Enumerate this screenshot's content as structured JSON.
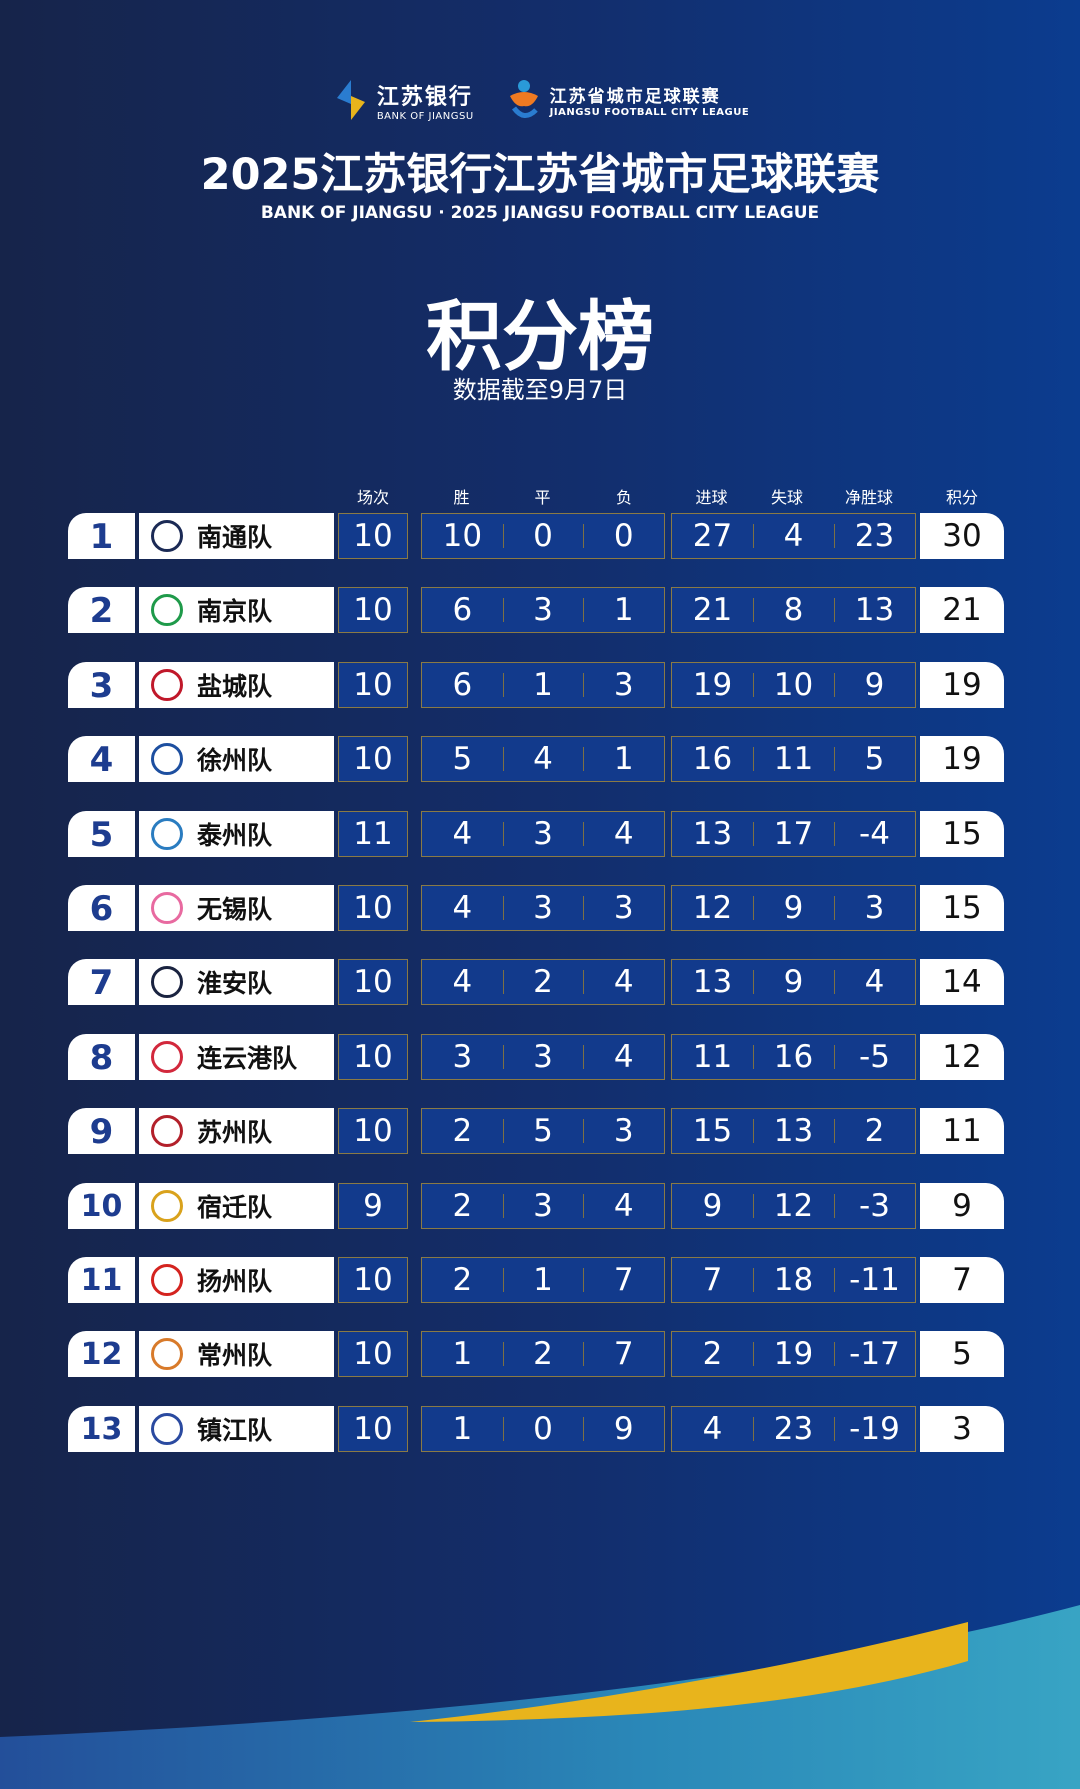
{
  "logos": {
    "bank_cn": "江苏银行",
    "bank_en": "BANK OF JIANGSU",
    "league_cn": "江苏省城市足球联赛",
    "league_en": "JIANGSU FOOTBALL CITY LEAGUE"
  },
  "title": "2025江苏银行江苏省城市足球联赛",
  "subtitle": "BANK OF JIANGSU · 2025 JIANGSU FOOTBALL CITY LEAGUE",
  "board_title": "积分榜",
  "date_note": "数据截至9月7日",
  "headers": {
    "played": "场次",
    "win": "胜",
    "draw": "平",
    "loss": "负",
    "gf": "进球",
    "ga": "失球",
    "gd": "净胜球",
    "pts": "积分"
  },
  "colors": {
    "accent_yellow": "#e8b41c",
    "rank_blue": "#1d3c8f",
    "cell_bg": "#123a8c"
  },
  "rows": [
    {
      "rank": "1",
      "team": "南通队",
      "badge": "#1b2a55",
      "played": "10",
      "w": "10",
      "d": "0",
      "l": "0",
      "gf": "27",
      "ga": "4",
      "gd": "23",
      "pts": "30"
    },
    {
      "rank": "2",
      "team": "南京队",
      "badge": "#1f9a4a",
      "played": "10",
      "w": "6",
      "d": "3",
      "l": "1",
      "gf": "21",
      "ga": "8",
      "gd": "13",
      "pts": "21"
    },
    {
      "rank": "3",
      "team": "盐城队",
      "badge": "#c0182a",
      "played": "10",
      "w": "6",
      "d": "1",
      "l": "3",
      "gf": "19",
      "ga": "10",
      "gd": "9",
      "pts": "19"
    },
    {
      "rank": "4",
      "team": "徐州队",
      "badge": "#1d4fa0",
      "played": "10",
      "w": "5",
      "d": "4",
      "l": "1",
      "gf": "16",
      "ga": "11",
      "gd": "5",
      "pts": "19"
    },
    {
      "rank": "5",
      "team": "泰州队",
      "badge": "#2a7cc0",
      "played": "11",
      "w": "4",
      "d": "3",
      "l": "4",
      "gf": "13",
      "ga": "17",
      "gd": "-4",
      "pts": "15"
    },
    {
      "rank": "6",
      "team": "无锡队",
      "badge": "#e86aa0",
      "played": "10",
      "w": "4",
      "d": "3",
      "l": "3",
      "gf": "12",
      "ga": "9",
      "gd": "3",
      "pts": "15"
    },
    {
      "rank": "7",
      "team": "淮安队",
      "badge": "#1a2340",
      "played": "10",
      "w": "4",
      "d": "2",
      "l": "4",
      "gf": "13",
      "ga": "9",
      "gd": "4",
      "pts": "14"
    },
    {
      "rank": "8",
      "team": "连云港队",
      "badge": "#d2283c",
      "played": "10",
      "w": "3",
      "d": "3",
      "l": "4",
      "gf": "11",
      "ga": "16",
      "gd": "-5",
      "pts": "12"
    },
    {
      "rank": "9",
      "team": "苏州队",
      "badge": "#b3202a",
      "played": "10",
      "w": "2",
      "d": "5",
      "l": "3",
      "gf": "15",
      "ga": "13",
      "gd": "2",
      "pts": "11"
    },
    {
      "rank": "10",
      "team": "宿迁队",
      "badge": "#d9a21c",
      "played": "9",
      "w": "2",
      "d": "3",
      "l": "4",
      "gf": "9",
      "ga": "12",
      "gd": "-3",
      "pts": "9"
    },
    {
      "rank": "11",
      "team": "扬州队",
      "badge": "#d4231f",
      "played": "10",
      "w": "2",
      "d": "1",
      "l": "7",
      "gf": "7",
      "ga": "18",
      "gd": "-11",
      "pts": "7"
    },
    {
      "rank": "12",
      "team": "常州队",
      "badge": "#d87a2a",
      "played": "10",
      "w": "1",
      "d": "2",
      "l": "7",
      "gf": "2",
      "ga": "19",
      "gd": "-17",
      "pts": "5"
    },
    {
      "rank": "13",
      "team": "镇江队",
      "badge": "#2a4aa0",
      "played": "10",
      "w": "1",
      "d": "0",
      "l": "9",
      "gf": "4",
      "ga": "23",
      "gd": "-19",
      "pts": "3"
    }
  ]
}
